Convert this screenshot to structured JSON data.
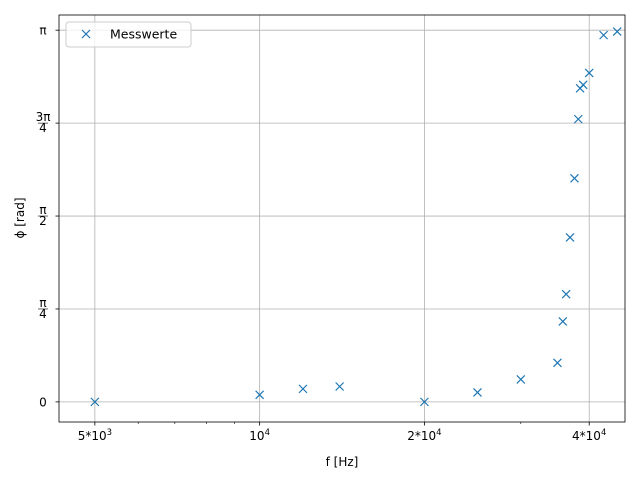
{
  "chart_data": {
    "type": "scatter",
    "xscale": "log",
    "xlabel": "f [Hz]",
    "ylabel": "ϕ [rad]",
    "xlim": [
      4300,
      46500
    ],
    "ylim": [
      -0.17,
      3.27
    ],
    "grid": true,
    "legend": {
      "position": "top-left",
      "entries": [
        "Messwerte"
      ]
    },
    "color": "#1f77b4",
    "x_ticks": [
      {
        "value": 5000,
        "label": "5*10",
        "exp": "3"
      },
      {
        "value": 10000,
        "label": "10",
        "exp": "4"
      },
      {
        "value": 20000,
        "label": "2*10",
        "exp": "4"
      },
      {
        "value": 40000,
        "label": "4*10",
        "exp": "4"
      }
    ],
    "y_ticks": [
      {
        "value": 0,
        "kind": "plain",
        "text": "0"
      },
      {
        "value": 0.7854,
        "kind": "frac",
        "num": "π",
        "den": "4"
      },
      {
        "value": 1.5708,
        "kind": "frac",
        "num": "π",
        "den": "2"
      },
      {
        "value": 2.3562,
        "kind": "frac",
        "num": "3π",
        "den": "4"
      },
      {
        "value": 3.1416,
        "kind": "plain",
        "text": "π"
      }
    ],
    "series": [
      {
        "name": "Messwerte",
        "marker": "x",
        "points": [
          {
            "x": 5000,
            "y": 0.0
          },
          {
            "x": 10000,
            "y": 0.06
          },
          {
            "x": 12000,
            "y": 0.11
          },
          {
            "x": 14000,
            "y": 0.13
          },
          {
            "x": 20000,
            "y": 0.0
          },
          {
            "x": 25000,
            "y": 0.08
          },
          {
            "x": 30000,
            "y": 0.19
          },
          {
            "x": 35000,
            "y": 0.33
          },
          {
            "x": 35800,
            "y": 0.68
          },
          {
            "x": 36300,
            "y": 0.91
          },
          {
            "x": 36900,
            "y": 1.39
          },
          {
            "x": 37600,
            "y": 1.89
          },
          {
            "x": 38200,
            "y": 2.39
          },
          {
            "x": 38500,
            "y": 2.65
          },
          {
            "x": 39000,
            "y": 2.68
          },
          {
            "x": 40000,
            "y": 2.78
          },
          {
            "x": 42500,
            "y": 3.1
          },
          {
            "x": 45000,
            "y": 3.13
          }
        ]
      }
    ]
  }
}
